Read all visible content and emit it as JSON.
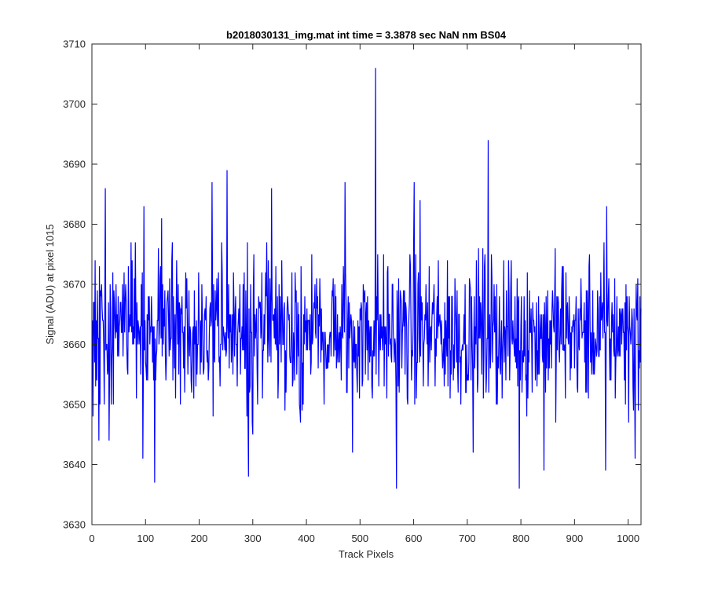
{
  "chart_data": {
    "type": "line",
    "title": "b2018030131_img.mat int time = 3.3878 sec  NaN nm BS04",
    "xlabel": "Track Pixels",
    "ylabel": "Signal (ADU) at pixel 1015",
    "xlim": [
      0,
      1024
    ],
    "ylim": [
      3630,
      3710
    ],
    "xticks": [
      0,
      100,
      200,
      300,
      400,
      500,
      600,
      700,
      800,
      900,
      1000
    ],
    "yticks": [
      3630,
      3640,
      3650,
      3660,
      3670,
      3680,
      3690,
      3700,
      3710
    ],
    "xtick_labels": [
      "0",
      "100",
      "200",
      "300",
      "400",
      "500",
      "600",
      "700",
      "800",
      "900",
      "1000"
    ],
    "ytick_labels": [
      "3630",
      "3640",
      "3650",
      "3660",
      "3670",
      "3680",
      "3690",
      "3700",
      "3710"
    ],
    "grid": false,
    "series_color": "#0000ff",
    "series": [
      {
        "x_start": 1,
        "x_step": 1,
        "count": 1024,
        "mean": 3662,
        "spread": 6.5,
        "peaks": [
          {
            "x": 13,
            "y": 3644
          },
          {
            "x": 25,
            "y": 3686
          },
          {
            "x": 95,
            "y": 3641
          },
          {
            "x": 97,
            "y": 3683
          },
          {
            "x": 117,
            "y": 3637
          },
          {
            "x": 130,
            "y": 3681
          },
          {
            "x": 224,
            "y": 3687
          },
          {
            "x": 252,
            "y": 3689
          },
          {
            "x": 292,
            "y": 3638
          },
          {
            "x": 335,
            "y": 3686
          },
          {
            "x": 472,
            "y": 3687
          },
          {
            "x": 486,
            "y": 3642
          },
          {
            "x": 529,
            "y": 3706
          },
          {
            "x": 568,
            "y": 3636
          },
          {
            "x": 601,
            "y": 3687
          },
          {
            "x": 612,
            "y": 3684
          },
          {
            "x": 711,
            "y": 3642
          },
          {
            "x": 739,
            "y": 3694
          },
          {
            "x": 797,
            "y": 3636
          },
          {
            "x": 843,
            "y": 3639
          },
          {
            "x": 958,
            "y": 3639
          },
          {
            "x": 960,
            "y": 3683
          },
          {
            "x": 1013,
            "y": 3641
          }
        ]
      }
    ]
  }
}
